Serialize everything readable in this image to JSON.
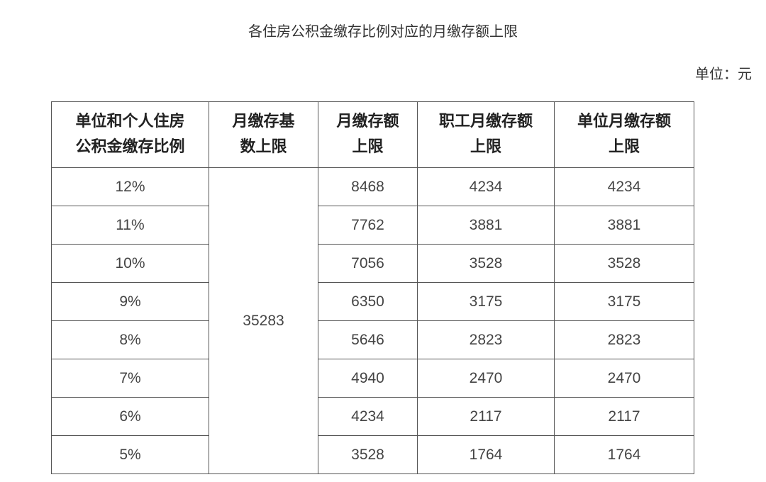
{
  "title": "各住房公积金缴存比例对应的月缴存额上限",
  "unit": "单位：元",
  "table": {
    "headers": [
      [
        "单位和个人住房",
        "公积金缴存比例"
      ],
      [
        "月缴存基",
        "数上限"
      ],
      [
        "月缴存额",
        "上限"
      ],
      [
        "职工月缴存额",
        "上限"
      ],
      [
        "单位月缴存额",
        "上限"
      ]
    ],
    "base_limit": "35283",
    "rows": [
      {
        "ratio": "12%",
        "total": "8468",
        "employee": "4234",
        "employer": "4234"
      },
      {
        "ratio": "11%",
        "total": "7762",
        "employee": "3881",
        "employer": "3881"
      },
      {
        "ratio": "10%",
        "total": "7056",
        "employee": "3528",
        "employer": "3528"
      },
      {
        "ratio": "9%",
        "total": "6350",
        "employee": "3175",
        "employer": "3175"
      },
      {
        "ratio": "8%",
        "total": "5646",
        "employee": "2823",
        "employer": "2823"
      },
      {
        "ratio": "7%",
        "total": "4940",
        "employee": "2470",
        "employer": "2470"
      },
      {
        "ratio": "6%",
        "total": "4234",
        "employee": "2117",
        "employer": "2117"
      },
      {
        "ratio": "5%",
        "total": "3528",
        "employee": "1764",
        "employer": "1764"
      }
    ]
  }
}
